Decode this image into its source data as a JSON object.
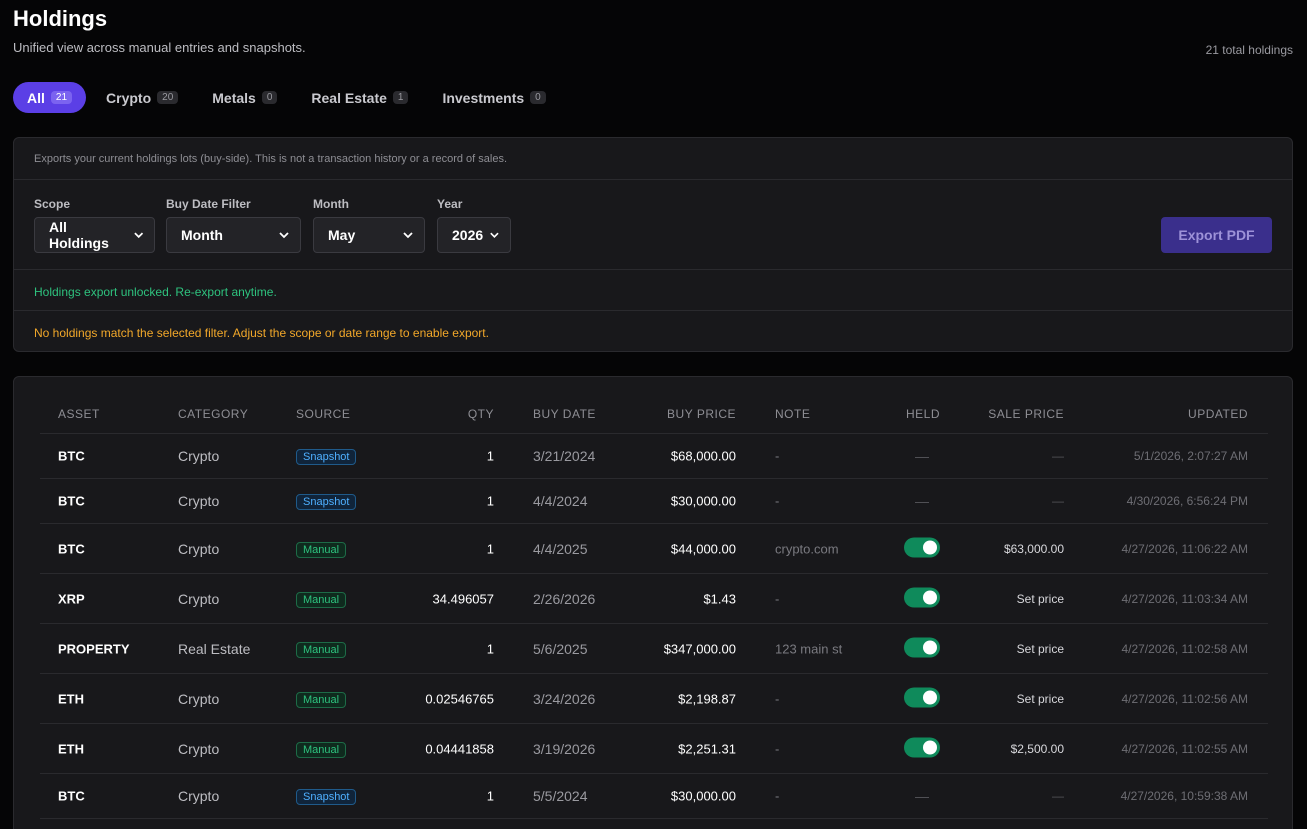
{
  "header": {
    "title": "Holdings",
    "subtitle": "Unified view across manual entries and snapshots.",
    "total": "21 total holdings"
  },
  "tabs": [
    {
      "label": "All",
      "count": "21"
    },
    {
      "label": "Crypto",
      "count": "20"
    },
    {
      "label": "Metals",
      "count": "0"
    },
    {
      "label": "Real Estate",
      "count": "1"
    },
    {
      "label": "Investments",
      "count": "0"
    }
  ],
  "export": {
    "note": "Exports your current holdings lots (buy-side). This is not a transaction history or a record of sales.",
    "scope_label": "Scope",
    "scope_value": "All Holdings",
    "filter_label": "Buy Date Filter",
    "filter_value": "Month",
    "month_label": "Month",
    "month_value": "May",
    "year_label": "Year",
    "year_value": "2026",
    "button": "Export PDF",
    "status_ok": "Holdings export unlocked. Re-export anytime.",
    "status_warn": "No holdings match the selected filter. Adjust the scope or date range to enable export."
  },
  "table": {
    "headers": {
      "asset": "ASSET",
      "category": "CATEGORY",
      "source": "SOURCE",
      "qty": "QTY",
      "buy_date": "BUY DATE",
      "buy_price": "BUY PRICE",
      "note": "NOTE",
      "held": "HELD",
      "sale_price": "SALE PRICE",
      "updated": "UPDATED"
    },
    "rows": [
      {
        "asset": "BTC",
        "category": "Crypto",
        "source": "Snapshot",
        "qty": "1",
        "buy_date": "3/21/2024",
        "buy_price": "$68,000.00",
        "note": "-",
        "held": "—",
        "sale_price": "—",
        "updated": "5/1/2026, 2:07:27 AM"
      },
      {
        "asset": "BTC",
        "category": "Crypto",
        "source": "Snapshot",
        "qty": "1",
        "buy_date": "4/4/2024",
        "buy_price": "$30,000.00",
        "note": "-",
        "held": "—",
        "sale_price": "—",
        "updated": "4/30/2026, 6:56:24 PM"
      },
      {
        "asset": "BTC",
        "category": "Crypto",
        "source": "Manual",
        "qty": "1",
        "buy_date": "4/4/2025",
        "buy_price": "$44,000.00",
        "note": "crypto.com",
        "held": "on",
        "sale_price": "$63,000.00",
        "updated": "4/27/2026, 11:06:22 AM"
      },
      {
        "asset": "XRP",
        "category": "Crypto",
        "source": "Manual",
        "qty": "34.496057",
        "buy_date": "2/26/2026",
        "buy_price": "$1.43",
        "note": "-",
        "held": "on",
        "sale_price": "Set price",
        "updated": "4/27/2026, 11:03:34 AM"
      },
      {
        "asset": "PROPERTY",
        "category": "Real Estate",
        "source": "Manual",
        "qty": "1",
        "buy_date": "5/6/2025",
        "buy_price": "$347,000.00",
        "note": "123 main st",
        "held": "on",
        "sale_price": "Set price",
        "updated": "4/27/2026, 11:02:58 AM"
      },
      {
        "asset": "ETH",
        "category": "Crypto",
        "source": "Manual",
        "qty": "0.02546765",
        "buy_date": "3/24/2026",
        "buy_price": "$2,198.87",
        "note": "-",
        "held": "on",
        "sale_price": "Set price",
        "updated": "4/27/2026, 11:02:56 AM"
      },
      {
        "asset": "ETH",
        "category": "Crypto",
        "source": "Manual",
        "qty": "0.04441858",
        "buy_date": "3/19/2026",
        "buy_price": "$2,251.31",
        "note": "-",
        "held": "on",
        "sale_price": "$2,500.00",
        "updated": "4/27/2026, 11:02:55 AM"
      },
      {
        "asset": "BTC",
        "category": "Crypto",
        "source": "Snapshot",
        "qty": "1",
        "buy_date": "5/5/2024",
        "buy_price": "$30,000.00",
        "note": "-",
        "held": "—",
        "sale_price": "—",
        "updated": "4/27/2026, 10:59:38 AM"
      }
    ]
  }
}
